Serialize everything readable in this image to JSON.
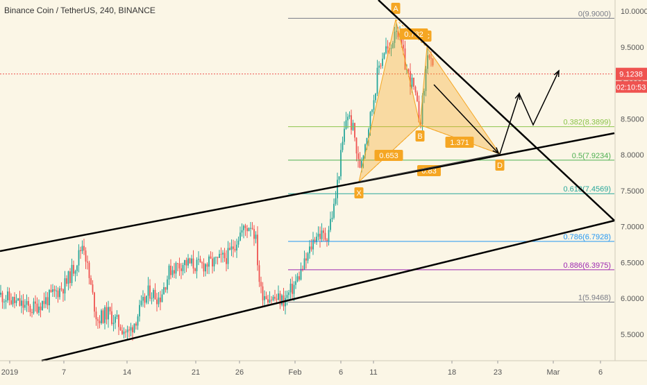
{
  "chart_title": "Binance Coin / TetherUS, 240, BINANCE",
  "chart_data": {
    "type": "candlestick",
    "symbol": "Binance Coin / TetherUS",
    "interval": "240",
    "exchange": "BINANCE",
    "ylim": [
      5.2,
      10.1
    ],
    "y_ticks": [
      "10.0000",
      "9.5000",
      "9.0000",
      "8.5000",
      "8.0000",
      "7.5000",
      "7.0000",
      "6.5000",
      "6.0000",
      "5.5000"
    ],
    "x_ticks": [
      "2019",
      "7",
      "14",
      "21",
      "26",
      "Feb",
      "6",
      "11",
      "18",
      "23",
      "Mar",
      "6"
    ],
    "last_price": "9.1238",
    "countdown": "02:10:53",
    "fib_levels": [
      {
        "label": "0(9.9000)",
        "value": 9.9,
        "color": "#787b86"
      },
      {
        "label": "0.382(8.3899)",
        "value": 8.3899,
        "color": "#8bc34a"
      },
      {
        "label": "0.5(7.9234)",
        "value": 7.9234,
        "color": "#4caf50"
      },
      {
        "label": "0.618(7.4569)",
        "value": 7.4569,
        "color": "#26a69a"
      },
      {
        "label": "0.786(6.7928)",
        "value": 6.7928,
        "color": "#2196f3"
      },
      {
        "label": "0.886(6.3975)",
        "value": 6.3975,
        "color": "#9c27b0"
      },
      {
        "label": "1(5.9468)",
        "value": 5.9468,
        "color": "#787b86"
      }
    ],
    "harmonic_points": [
      {
        "label": "X",
        "value": 7.6
      },
      {
        "label": "A",
        "value": 9.9
      },
      {
        "label": "B",
        "value": 8.4
      },
      {
        "label": "C",
        "value": 9.45
      },
      {
        "label": "D",
        "value": 7.95
      }
    ],
    "harmonic_ratios": [
      "0.732",
      "0.653",
      "0.83",
      "1.371"
    ],
    "colors": {
      "up": "#26a69a",
      "down": "#ef5350",
      "pattern": "#f5a623",
      "price_line": "#ef5350",
      "bg": "#fbf6e6"
    }
  }
}
